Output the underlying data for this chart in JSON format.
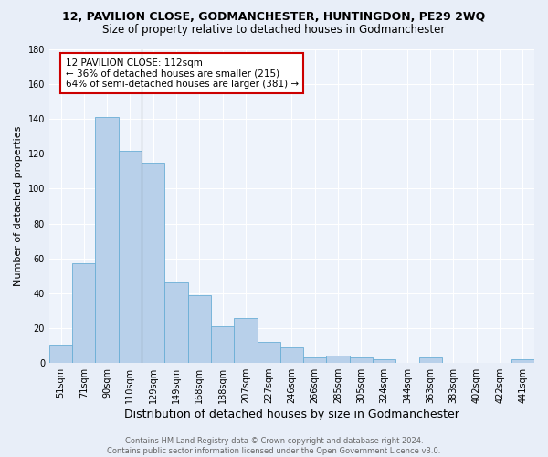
{
  "title": "12, PAVILION CLOSE, GODMANCHESTER, HUNTINGDON, PE29 2WQ",
  "subtitle": "Size of property relative to detached houses in Godmanchester",
  "xlabel": "Distribution of detached houses by size in Godmanchester",
  "ylabel": "Number of detached properties",
  "categories": [
    "51sqm",
    "71sqm",
    "90sqm",
    "110sqm",
    "129sqm",
    "149sqm",
    "168sqm",
    "188sqm",
    "207sqm",
    "227sqm",
    "246sqm",
    "266sqm",
    "285sqm",
    "305sqm",
    "324sqm",
    "344sqm",
    "363sqm",
    "383sqm",
    "402sqm",
    "422sqm",
    "441sqm"
  ],
  "values": [
    10,
    57,
    141,
    122,
    115,
    46,
    39,
    21,
    26,
    12,
    9,
    3,
    4,
    3,
    2,
    0,
    3,
    0,
    0,
    0,
    2
  ],
  "bar_color": "#b8d0ea",
  "bar_edge_color": "#6aaed6",
  "annotation_text": "12 PAVILION CLOSE: 112sqm\n← 36% of detached houses are smaller (215)\n64% of semi-detached houses are larger (381) →",
  "annotation_box_color": "#ffffff",
  "annotation_box_edge_color": "#cc0000",
  "ylim": [
    0,
    180
  ],
  "yticks": [
    0,
    20,
    40,
    60,
    80,
    100,
    120,
    140,
    160,
    180
  ],
  "footer_text": "Contains HM Land Registry data © Crown copyright and database right 2024.\nContains public sector information licensed under the Open Government Licence v3.0.",
  "bg_color": "#e8eef8",
  "plot_bg_color": "#eef3fb",
  "grid_color": "#ffffff",
  "title_fontsize": 9,
  "subtitle_fontsize": 8.5,
  "xlabel_fontsize": 9,
  "ylabel_fontsize": 8,
  "tick_fontsize": 7,
  "annotation_fontsize": 7.5,
  "footer_fontsize": 6
}
